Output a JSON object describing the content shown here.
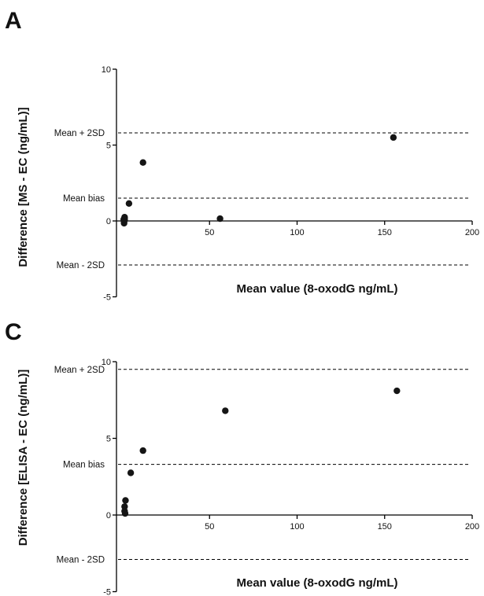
{
  "chart_data": [
    {
      "type": "scatter",
      "panel": "A",
      "ylabel": "Difference [MS - EC (ng/mL)]",
      "xlabel": "Mean value (8-oxodG ng/mL)",
      "xlim": [
        0,
        200
      ],
      "ylim": [
        -5,
        10
      ],
      "xticks": [
        "50",
        "100",
        "150",
        "200"
      ],
      "yticks": [
        "-5",
        "0",
        "5",
        "10"
      ],
      "reference_lines": [
        {
          "label": "Mean + 2SD",
          "y": 5.8
        },
        {
          "label": "Mean bias",
          "y": 1.5
        },
        {
          "label": "Mean - 2SD",
          "y": -2.9
        }
      ],
      "x": [
        155,
        12,
        4,
        1.5,
        1.5,
        1.5,
        1.2,
        1.2,
        1.0,
        56
      ],
      "y": [
        5.5,
        3.85,
        1.15,
        0.25,
        0.15,
        0.05,
        -0.05,
        -0.15,
        0.1,
        0.15
      ]
    },
    {
      "type": "scatter",
      "panel": "C",
      "ylabel": "Difference [ELISA - EC (ng/mL)]",
      "xlabel": "Mean value (8-oxodG ng/mL)",
      "xlim": [
        0,
        200
      ],
      "ylim": [
        -5,
        10
      ],
      "xticks": [
        "50",
        "100",
        "150",
        "200"
      ],
      "yticks": [
        "-5",
        "0",
        "5",
        "10"
      ],
      "reference_lines": [
        {
          "label": "Mean + 2SD",
          "y": 9.5
        },
        {
          "label": "Mean bias",
          "y": 3.3
        },
        {
          "label": "Mean - 2SD",
          "y": -2.9
        }
      ],
      "x": [
        157,
        59,
        12,
        5,
        2,
        1.5,
        1.5,
        1.8
      ],
      "y": [
        8.1,
        6.8,
        4.2,
        2.75,
        0.95,
        0.55,
        0.25,
        0.1
      ]
    }
  ]
}
